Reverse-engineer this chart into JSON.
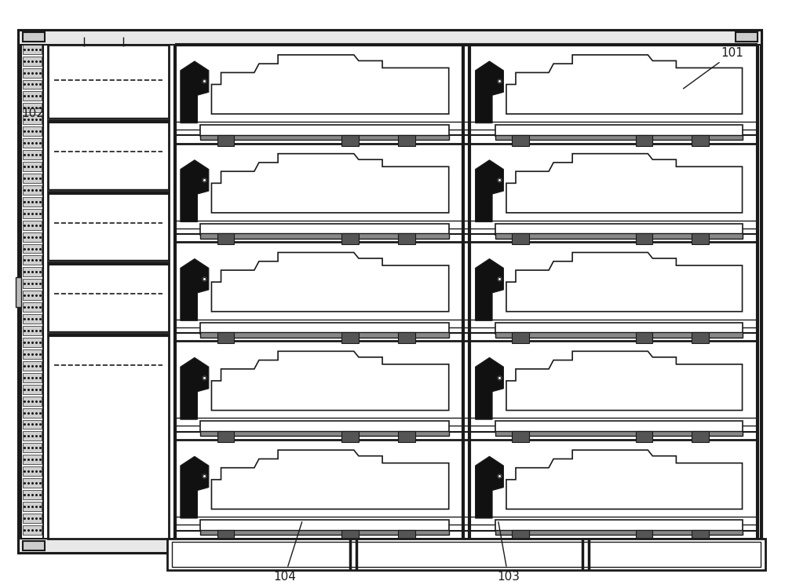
{
  "bg_color": "#ffffff",
  "line_color": "#1a1a1a",
  "label_color": "#000000",
  "figsize": [
    10.0,
    7.45
  ],
  "dpi": 100
}
